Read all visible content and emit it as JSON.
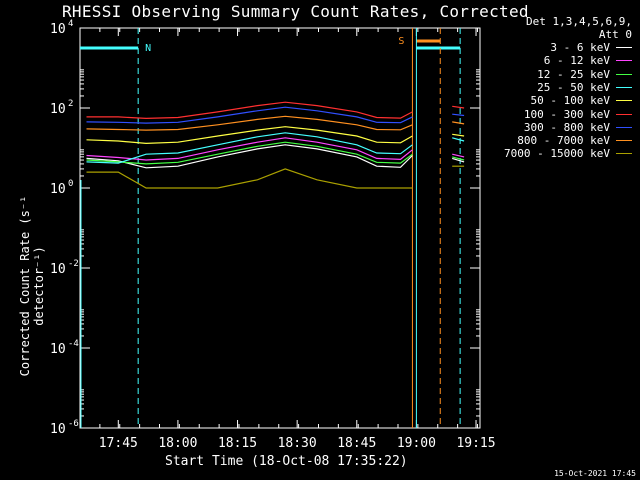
{
  "chart_data": {
    "type": "line",
    "title": "RHESSI Observing Summary Count Rates, Corrected",
    "xlabel": "Start Time (18-Oct-08 17:35:22)",
    "ylabel": "Corrected Count Rate (s⁻¹ detector⁻¹)",
    "y_scale": "log",
    "ylim": [
      1e-06,
      10000.0
    ],
    "xlim": [
      "17:35:22",
      "19:16"
    ],
    "x_ticks": [
      "17:45",
      "18:00",
      "18:15",
      "18:30",
      "18:45",
      "19:00",
      "19:15"
    ],
    "y_ticks": [
      {
        "value": 1e-06,
        "label": "10",
        "exp": "-6"
      },
      {
        "value": 0.0001,
        "label": "10",
        "exp": "-4"
      },
      {
        "value": 0.01,
        "label": "10",
        "exp": "-2"
      },
      {
        "value": 1,
        "label": "10",
        "exp": "0"
      },
      {
        "value": 100.0,
        "label": "10",
        "exp": "2"
      },
      {
        "value": 10000.0,
        "label": "10",
        "exp": "4"
      }
    ],
    "legend_header": [
      "Det 1,3,4,5,6,9,",
      "Att 0"
    ],
    "series": [
      {
        "name": "3 - 6 keV",
        "color": "#ffffff",
        "values": [
          5.5,
          4.8,
          3.2,
          3.5,
          6.0,
          9.5,
          12.0,
          9.5,
          6.0,
          3.5,
          3.3,
          6.5,
          5.5,
          4.5
        ]
      },
      {
        "name": "6 - 12 keV",
        "color": "#ff44ff",
        "values": [
          6.5,
          5.8,
          5.0,
          5.5,
          9.0,
          14.0,
          18.0,
          14.0,
          9.0,
          5.5,
          5.2,
          9.0,
          7.0,
          6.0
        ]
      },
      {
        "name": "12 - 25 keV",
        "color": "#44ff44",
        "values": [
          5.0,
          4.5,
          4.0,
          4.4,
          7.0,
          11.0,
          14.0,
          11.0,
          7.0,
          4.4,
          4.2,
          7.0,
          6.0,
          5.0
        ]
      },
      {
        "name": "25 - 50 keV",
        "color": "#44ffff",
        "values": [
          4.5,
          4.2,
          7.0,
          7.5,
          12.0,
          19.0,
          24.0,
          19.0,
          12.0,
          7.5,
          7.2,
          12.0,
          18.0,
          15.0
        ]
      },
      {
        "name": "50 - 100 keV",
        "color": "#ffff44",
        "values": [
          16.0,
          15.0,
          13.0,
          14.0,
          20.0,
          28.0,
          34.0,
          28.0,
          20.0,
          14.0,
          13.5,
          20.0,
          22.0,
          20.0
        ]
      },
      {
        "name": "100 - 300 keV",
        "color": "#ff3030",
        "values": [
          60.0,
          60.0,
          55.0,
          58.0,
          80.0,
          115.0,
          140.0,
          115.0,
          80.0,
          58.0,
          56.0,
          80.0,
          110.0,
          100.0
        ]
      },
      {
        "name": "300 - 800 keV",
        "color": "#3050ff",
        "values": [
          45.0,
          44.0,
          42.0,
          44.0,
          60.0,
          85.0,
          105.0,
          85.0,
          60.0,
          44.0,
          43.0,
          60.0,
          70.0,
          65.0
        ]
      },
      {
        "name": "800 - 7000 keV",
        "color": "#ff9020",
        "values": [
          30.0,
          29.0,
          28.0,
          29.0,
          38.0,
          52.0,
          62.0,
          52.0,
          38.0,
          29.0,
          28.5,
          38.0,
          45.0,
          40.0
        ]
      },
      {
        "name": "7000 - 15000 keV",
        "color": "#aaa000",
        "values": [
          2.5,
          2.5,
          1.0,
          1.0,
          1.0,
          1.6,
          3.0,
          1.6,
          1.0,
          1.0,
          1.0,
          1.0,
          3.5,
          3.5
        ]
      }
    ],
    "series_times": [
      "17:37",
      "17:45",
      "17:52",
      "18:00",
      "18:10",
      "18:20",
      "18:27",
      "18:35",
      "18:45",
      "18:50",
      "18:56",
      "18:59",
      "19:09",
      "19:12"
    ],
    "markers": [
      {
        "label": "N",
        "color": "#44ffff",
        "time": "17:50"
      },
      {
        "label": "S",
        "color": "#ff9020",
        "time": "18:59"
      }
    ],
    "footer": "15-Oct-2021 17:45"
  }
}
